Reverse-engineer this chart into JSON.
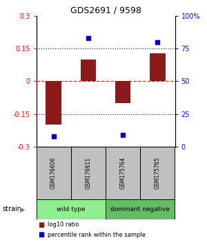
{
  "title": "GDS2691 / 9598",
  "samples": [
    "GSM176606",
    "GSM176611",
    "GSM175764",
    "GSM175765"
  ],
  "log10_ratio": [
    -0.2,
    0.1,
    -0.1,
    0.13
  ],
  "percentile": [
    8,
    83,
    9,
    80
  ],
  "bar_color": "#8B1A1A",
  "dot_color": "#0000CC",
  "ylim_left": [
    -0.3,
    0.3
  ],
  "ylim_right": [
    0,
    100
  ],
  "yticks_left": [
    -0.3,
    -0.15,
    0,
    0.15,
    0.3
  ],
  "yticks_right": [
    0,
    25,
    50,
    75,
    100
  ],
  "ytick_labels_left": [
    "-0.3",
    "-0.15",
    "0",
    "0.15",
    "0.3"
  ],
  "ytick_labels_right": [
    "0",
    "25",
    "50",
    "75",
    "100%"
  ],
  "hlines": [
    -0.15,
    0,
    0.15
  ],
  "hline_styles": [
    "dotted",
    "dashed",
    "dotted"
  ],
  "hline_colors": [
    "black",
    "red",
    "black"
  ],
  "groups": [
    {
      "label": "wild type",
      "samples": [
        0,
        1
      ],
      "color": "#90EE90"
    },
    {
      "label": "dominant negative",
      "samples": [
        2,
        3
      ],
      "color": "#66BB66"
    }
  ],
  "strain_label": "strain",
  "legend_bar_label": "log10 ratio",
  "legend_dot_label": "percentile rank within the sample",
  "background_color": "#ffffff",
  "plot_bg_color": "#ffffff",
  "sample_box_color": "#C0C0C0"
}
